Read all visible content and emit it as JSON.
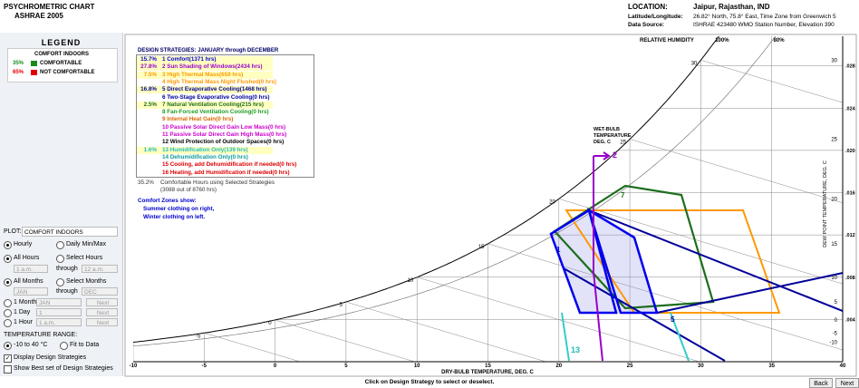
{
  "header": {
    "title": "PSYCHROMETRIC CHART",
    "subtitle": "ASHRAE 2005",
    "location_label": "LOCATION:",
    "location": "Jaipur, Rajasthan, IND",
    "latlon_label": "Latitude/Longitude:",
    "latlon": "26.82° North, 75.8° East, Time Zone from Greenwich 5",
    "source_label": "Data Source:",
    "source": "ISHRAE    423480 WMO Station Number, Elevation 390"
  },
  "legend": {
    "title": "LEGEND",
    "heading": "COMFORT INDOORS",
    "items": [
      {
        "pct": "35%",
        "label": "COMFORTABLE",
        "color": "#1a8a1a"
      },
      {
        "pct": "65%",
        "label": "NOT COMFORTABLE",
        "color": "#e00000"
      }
    ]
  },
  "controls": {
    "plot_label": "PLOT:",
    "plot_value": "COMFORT INDOORS",
    "hourly": "Hourly",
    "daily": "Daily Min/Max",
    "all_hours": "All Hours",
    "select_hours": "Select Hours",
    "hour_from": "1 a.m.",
    "through": "through",
    "hour_to": "12 a.m.",
    "all_months": "All Months",
    "select_months": "Select Months",
    "month_from": "JAN",
    "month_to": "DEC",
    "one_month": "1 Month",
    "month_field": "JAN",
    "one_day": "1 Day",
    "day_field": "1",
    "one_hour": "1 Hour",
    "hour_field": "1 a.m.",
    "next": "Next",
    "temp_range_label": "TEMPERATURE RANGE:",
    "temp_range": "-10 to 40 °C",
    "fit": "Fit to Data",
    "display": "Display Design Strategies",
    "show_best": "Show Best set of Design Strategies"
  },
  "chart": {
    "title": "DESIGN STRATEGIES:  JANUARY through DECEMBER",
    "strategies": [
      {
        "pct": "15.7%",
        "label": "1 Comfort(1371 hrs)",
        "color": "#0000dd"
      },
      {
        "pct": "27.8%",
        "label": "2 Sun Shading of Windows(2434 hrs)",
        "color": "#9900cc"
      },
      {
        "pct": "7.5%",
        "label": "3 High Thermal Mass(659 hrs)",
        "color": "#ff9900"
      },
      {
        "label": "4 High Thermal Mass Night Flushed(0 hrs)",
        "color": "#ff9900"
      },
      {
        "pct": "16.8%",
        "label": "5 Direct Evaporative Cooling(1468 hrs)",
        "color": "#000099"
      },
      {
        "label": "6 Two-Stage Evaporative Cooling(0 hrs)",
        "color": "#000099"
      },
      {
        "pct": "2.5%",
        "label": "7 Natural Ventilation Cooling(215 hrs)",
        "color": "#1e6e1e"
      },
      {
        "label": "8 Fan-Forced Ventilation Cooling(0 hrs)",
        "color": "#1e9e1e"
      },
      {
        "label": "9 Internal Heat Gain(0 hrs)",
        "color": "#dd6600"
      },
      {
        "label": "10 Passive Solar Direct Gain Low Mass(0 hrs)",
        "color": "#cc00cc"
      },
      {
        "label": "11 Passive Solar Direct Gain High Mass(0 hrs)",
        "color": "#cc00cc"
      },
      {
        "label": "12 Wind Protection of Outdoor Spaces(0 hrs)",
        "color": "#000000"
      },
      {
        "pct": "1.6%",
        "label": "13 Humidification Only(139 hrs)",
        "color": "#22bbbb"
      },
      {
        "label": "14 Dehumidification Only(0 hrs)",
        "color": "#119999"
      },
      {
        "label": "15 Cooling, add Dehumidification if needed(0 hrs)",
        "color": "#dd0000"
      },
      {
        "label": "16 Heating, add Humidification if needed(0 hrs)",
        "color": "#dd0000"
      }
    ],
    "summary_pct": "35.2%",
    "summary": "Comfortable Hours using Selected Strategies",
    "summary_count": "(3088 out of 8760 hrs)",
    "comfort_note": [
      "Comfort Zones show:",
      "Summer clothing on right,",
      "Winter clothing on left."
    ],
    "zone_labels": [
      "1",
      "2",
      "5",
      "7",
      "13"
    ],
    "xlabel": "DRY-BULB TEMPERATURE, DEG. C",
    "xlim": [
      -10,
      40
    ],
    "xticks": [
      -10,
      -5,
      0,
      5,
      10,
      15,
      20,
      25,
      30,
      35,
      40
    ],
    "y2lim": [
      0,
      0.0308
    ],
    "y2ticks": [
      {
        "value": 0.004,
        "label": ".004"
      },
      {
        "value": 0.008,
        "label": ".008"
      },
      {
        "value": 0.012,
        "label": ".012"
      },
      {
        "value": 0.016,
        "label": ".016"
      },
      {
        "value": 0.02,
        "label": ".020"
      },
      {
        "value": 0.024,
        "label": ".024"
      },
      {
        "value": 0.028,
        "label": ".028"
      }
    ],
    "rh_title": "RELATIVE HUMIDITY",
    "rh": [
      {
        "value": 100,
        "label": "100%"
      },
      {
        "value": 80,
        "label": "80%"
      }
    ],
    "wetbulb_title": [
      "WET-BULB",
      "TEMPERATURE",
      "DEG. C"
    ],
    "wetbulb": [
      -5,
      0,
      5,
      10,
      15,
      20,
      25,
      30
    ],
    "dewpoint_title": "DEW POINT TEMPERATURE, DEG. C",
    "dewpoint": [
      30,
      25,
      20,
      15,
      10,
      5,
      0,
      -5,
      -10
    ]
  },
  "footer": {
    "hint": "Click on Design Strategy to select or deselect.",
    "buttons": [
      "Back",
      "Next"
    ]
  }
}
